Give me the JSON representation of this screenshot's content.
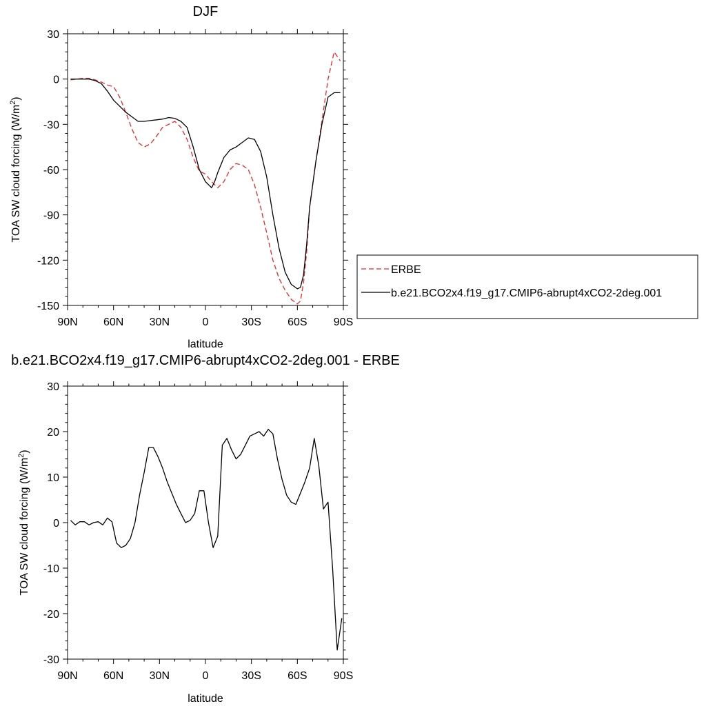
{
  "chart_data": [
    {
      "type": "line",
      "title": "DJF",
      "xlabel": "latitude",
      "ylabel_main": "TOA SW cloud forcing (W/m",
      "ylabel_sup": "2",
      "ylabel_close": ")",
      "xlim": [
        -90,
        90
      ],
      "ylim": [
        -150,
        30
      ],
      "xticks": [
        -90,
        -60,
        -30,
        0,
        30,
        60,
        90
      ],
      "xtick_labels": [
        "90N",
        "60N",
        "30N",
        "0",
        "30S",
        "60S",
        "90S"
      ],
      "yticks": [
        -150,
        -120,
        -90,
        -60,
        -30,
        0,
        30
      ],
      "ytick_labels": [
        "-150",
        "-120",
        "-90",
        "-60",
        "-30",
        "0",
        "30"
      ],
      "legend": {
        "placement": "right",
        "entries": [
          {
            "label": "ERBE",
            "style": "dashed",
            "color": "#e8262a"
          },
          {
            "label": "b.e21.BCO2x4.f19_g17.CMIP6-abrupt4xCO2-2deg.001",
            "style": "solid",
            "color": "#000000"
          }
        ]
      },
      "series": [
        {
          "name": "ERBE",
          "style": "dashed",
          "color": "#e8262a",
          "x": [
            -88,
            -84,
            -80,
            -76,
            -72,
            -68,
            -64,
            -60,
            -56,
            -52,
            -48,
            -44,
            -40,
            -36,
            -32,
            -28,
            -24,
            -20,
            -16,
            -12,
            -8,
            -4,
            0,
            4,
            8,
            12,
            16,
            20,
            24,
            28,
            32,
            36,
            40,
            44,
            48,
            52,
            56,
            60,
            62,
            64,
            66,
            68,
            72,
            76,
            80,
            84,
            88
          ],
          "y": [
            -0.5,
            0,
            0.5,
            0.5,
            -0.5,
            -2,
            -4,
            -5,
            -12,
            -22,
            -33,
            -42,
            -45,
            -43,
            -38,
            -32,
            -30,
            -28,
            -32,
            -40,
            -52,
            -61,
            -63,
            -68,
            -72,
            -68,
            -60,
            -56,
            -57,
            -60,
            -70,
            -85,
            -102,
            -120,
            -132,
            -140,
            -146,
            -149,
            -147,
            -135,
            -115,
            -85,
            -55,
            -28,
            0,
            18,
            12
          ]
        },
        {
          "name": "b.e21.BCO2x4.f19_g17.CMIP6-abrupt4xCO2-2deg.001",
          "style": "solid",
          "color": "#000000",
          "x": [
            -88,
            -84,
            -80,
            -76,
            -72,
            -68,
            -64,
            -60,
            -56,
            -52,
            -48,
            -44,
            -40,
            -36,
            -32,
            -28,
            -24,
            -20,
            -16,
            -12,
            -8,
            -4,
            0,
            4,
            6,
            8,
            12,
            16,
            20,
            24,
            28,
            32,
            36,
            40,
            44,
            48,
            52,
            56,
            60,
            62,
            64,
            66,
            68,
            72,
            76,
            80,
            84,
            88
          ],
          "y": [
            0,
            0,
            0,
            0,
            -1,
            -3,
            -8,
            -14,
            -18,
            -22,
            -25,
            -28,
            -28,
            -27.5,
            -27,
            -26.5,
            -25.5,
            -26,
            -28,
            -32,
            -45,
            -60,
            -68,
            -72,
            -68,
            -62,
            -52,
            -47,
            -45,
            -42,
            -39,
            -40,
            -48,
            -65,
            -90,
            -112,
            -128,
            -136,
            -139,
            -138,
            -130,
            -110,
            -85,
            -55,
            -30,
            -12,
            -9,
            -9
          ]
        }
      ]
    },
    {
      "type": "line",
      "title": "b.e21.BCO2x4.f19_g17.CMIP6-abrupt4xCO2-2deg.001 - ERBE",
      "xlabel": "latitude",
      "ylabel_main": "TOA SW cloud forcing (W/m",
      "ylabel_sup": "2",
      "ylabel_close": ")",
      "xlim": [
        -90,
        90
      ],
      "ylim": [
        -30,
        30
      ],
      "xticks": [
        -90,
        -60,
        -30,
        0,
        30,
        60,
        90
      ],
      "xtick_labels": [
        "90N",
        "60N",
        "30N",
        "0",
        "30S",
        "60S",
        "90S"
      ],
      "yticks": [
        -30,
        -20,
        -10,
        0,
        10,
        20,
        30
      ],
      "ytick_labels": [
        "-30",
        "-20",
        "-10",
        "0",
        "10",
        "20",
        "30"
      ],
      "series": [
        {
          "style": "solid",
          "color": "#000000",
          "x": [
            -88,
            -85,
            -82,
            -79,
            -76,
            -73,
            -70,
            -67,
            -64,
            -61,
            -58,
            -55,
            -52,
            -49,
            -46,
            -43,
            -40,
            -37,
            -34,
            -31,
            -28,
            -25,
            -22,
            -19,
            -16,
            -13,
            -10,
            -7,
            -4,
            -1,
            2,
            5,
            8,
            11,
            14,
            17,
            20,
            23,
            26,
            29,
            32,
            35,
            38,
            41,
            44,
            47,
            50,
            53,
            56,
            59,
            62,
            65,
            68,
            71,
            74,
            77,
            80,
            83,
            86,
            89
          ],
          "y": [
            0.5,
            -0.5,
            0.2,
            0.2,
            -0.5,
            0,
            0.2,
            -0.5,
            1,
            0.2,
            -4.5,
            -5.5,
            -5,
            -3.5,
            0,
            6,
            11,
            16.5,
            16.5,
            14.5,
            12,
            9,
            6.5,
            4,
            2,
            0,
            0.5,
            2,
            7,
            7,
            0,
            -5.5,
            -3,
            17,
            18.5,
            16,
            14,
            15,
            17,
            19,
            19.5,
            20,
            19,
            20.5,
            19.5,
            14,
            9.5,
            6,
            4.5,
            4,
            6.5,
            9,
            12,
            18.5,
            12.5,
            3,
            4.5,
            -10,
            -28,
            -21
          ]
        }
      ]
    }
  ]
}
